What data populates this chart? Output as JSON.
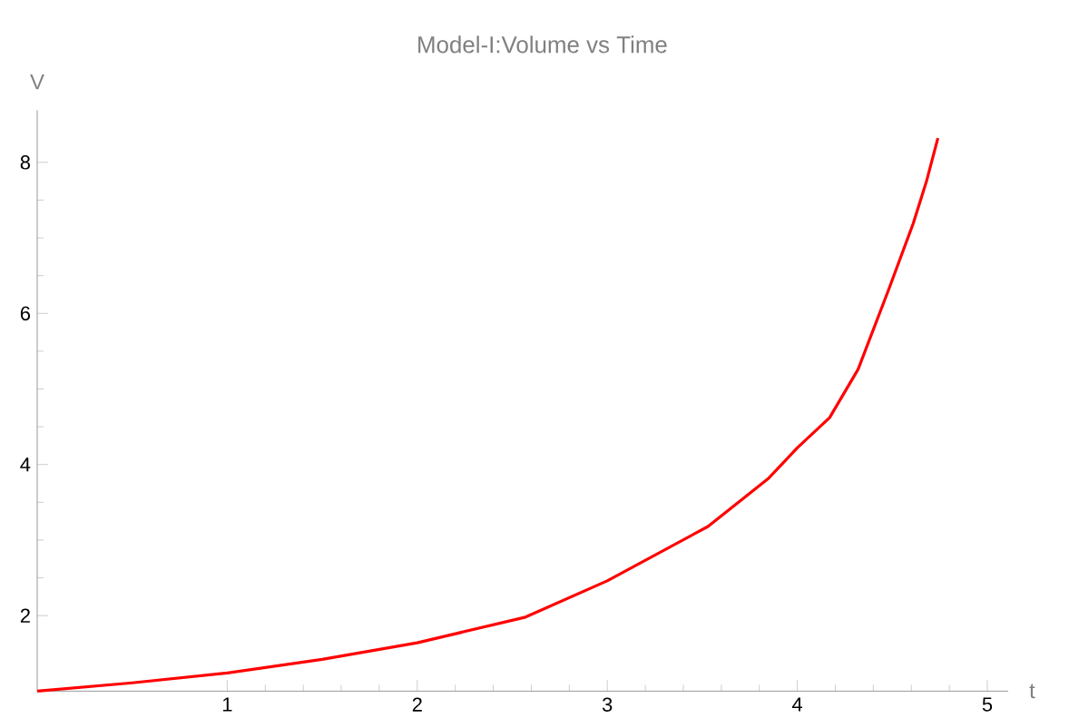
{
  "chart_data": {
    "type": "line",
    "title": "Model-I:Volume vs Time",
    "xlabel": "t",
    "ylabel": "V",
    "x": [
      0,
      0.5,
      1,
      1.5,
      2,
      2.57,
      3,
      3.53,
      3.85,
      4,
      4.17,
      4.32,
      4.48,
      4.61,
      4.68,
      4.74
    ],
    "values": [
      1,
      1.11,
      1.24,
      1.42,
      1.64,
      1.98,
      2.46,
      3.18,
      3.82,
      4.22,
      4.62,
      5.26,
      6.31,
      7.19,
      7.75,
      8.32
    ],
    "color": "#ff0000",
    "xlim": [
      0,
      5.11
    ],
    "ylim": [
      1,
      8.69
    ],
    "xticks": [
      1,
      2,
      3,
      4,
      5
    ],
    "yticks": [
      2,
      4,
      6,
      8
    ]
  }
}
